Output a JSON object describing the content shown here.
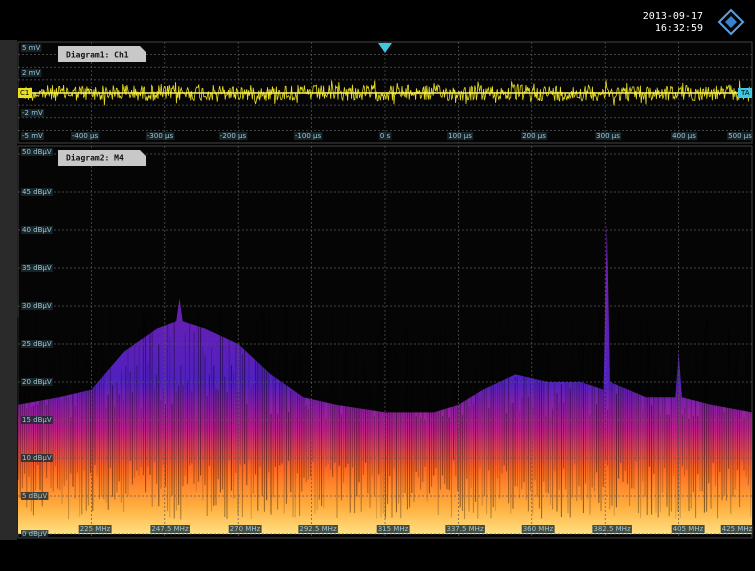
{
  "header": {
    "date": "2013-09-17",
    "time": "16:32:59"
  },
  "diagram1": {
    "title": "Diagram1: Ch1",
    "channel_marker": "C1",
    "trigger_marker": "TA",
    "y_labels": [
      "5 mV",
      "2 mV",
      "-2 mV",
      "-5 mV"
    ],
    "x_labels": [
      "-400 µs",
      "-300 µs",
      "-200 µs",
      "-100 µs",
      "0 s",
      "100 µs",
      "200 µs",
      "300 µs",
      "400 µs",
      "500 µs"
    ]
  },
  "diagram2": {
    "title": "Diagram2: M4",
    "y_labels": [
      "50 dBµV",
      "45 dBµV",
      "40 dBµV",
      "35 dBµV",
      "30 dBµV",
      "25 dBµV",
      "20 dBµV",
      "15 dBµV",
      "10 dBµV",
      "5 dBµV",
      "0 dBµV"
    ],
    "x_labels": [
      "225 MHz",
      "247.5 MHz",
      "270 MHz",
      "292.5 MHz",
      "315 MHz",
      "337.5 MHz",
      "360 MHz",
      "382.5 MHz",
      "405 MHz",
      "425 MHz"
    ],
    "spectrum": {
      "freq_mhz": [
        202.5,
        215,
        225,
        235,
        245,
        251,
        252,
        253,
        260,
        270,
        280,
        290,
        300,
        315,
        330,
        337.5,
        345,
        355,
        365,
        375,
        382,
        383,
        384,
        395,
        404,
        405,
        406,
        415,
        427.5
      ],
      "peak_dbuv": [
        17,
        18,
        19,
        24,
        27,
        28,
        31,
        28,
        27,
        25,
        21,
        18,
        17,
        16,
        16,
        17,
        19,
        21,
        20,
        20,
        19,
        41,
        20,
        18,
        18,
        24,
        18,
        17,
        16
      ]
    }
  }
}
